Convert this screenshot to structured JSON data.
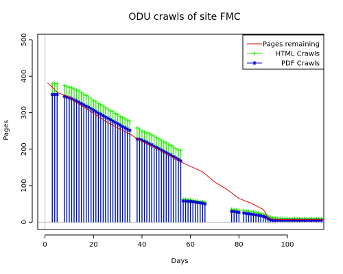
{
  "chart_data": {
    "type": "line",
    "title": "ODU crawls of site FMC",
    "xlabel": "Days",
    "ylabel": "Pages",
    "xlim": [
      -3,
      115
    ],
    "ylim": [
      -20,
      515
    ],
    "x_ticks": [
      0,
      20,
      40,
      60,
      80,
      100
    ],
    "y_ticks": [
      0,
      100,
      200,
      300,
      400,
      500
    ],
    "grid": false,
    "legend_position": "top-right",
    "legend": [
      {
        "name": "Pages remaining",
        "color": "#dd0000",
        "style": "line"
      },
      {
        "name": "HTML Crawls",
        "color": "#22ee00",
        "style": "line-plus"
      },
      {
        "name": "PDF Crawls",
        "color": "#0000cc",
        "style": "line-star"
      }
    ],
    "series": [
      {
        "name": "Pages remaining",
        "color": "#dd0000",
        "x": [
          1,
          3,
          5,
          10,
          15,
          20,
          25,
          30,
          35,
          38,
          40,
          45,
          50,
          55,
          56,
          60,
          65,
          70,
          75,
          80,
          85,
          90,
          91,
          92,
          95,
          100,
          105,
          110,
          115
        ],
        "values": [
          382,
          370,
          356,
          342,
          320,
          298,
          277,
          258,
          242,
          229,
          222,
          206,
          188,
          170,
          165,
          153,
          138,
          110,
          90,
          65,
          52,
          35,
          25,
          12,
          8,
          7,
          7,
          7,
          7
        ]
      },
      {
        "name": "HTML Crawls",
        "color": "#22ee00",
        "style": "spikes",
        "x": [
          3,
          4,
          5,
          8,
          9,
          10,
          11,
          12,
          13,
          14,
          15,
          16,
          17,
          18,
          19,
          20,
          21,
          22,
          23,
          24,
          25,
          26,
          27,
          28,
          29,
          30,
          31,
          32,
          33,
          34,
          35,
          38,
          39,
          40,
          41,
          42,
          43,
          44,
          45,
          46,
          47,
          48,
          49,
          50,
          51,
          52,
          53,
          54,
          55,
          56,
          57,
          58,
          59,
          60,
          61,
          62,
          63,
          64,
          65,
          66,
          77,
          78,
          79,
          80,
          82,
          83,
          84,
          85,
          86,
          87,
          88,
          89,
          90,
          91,
          92,
          93,
          94,
          95,
          96,
          97,
          98,
          99,
          100,
          101,
          102,
          103,
          104,
          105,
          106,
          107,
          108,
          109,
          110,
          111,
          112,
          113,
          114
        ],
        "values": [
          380,
          380,
          380,
          375,
          372,
          370,
          368,
          365,
          362,
          360,
          355,
          351,
          347,
          343,
          338,
          333,
          330,
          325,
          322,
          318,
          314,
          310,
          305,
          303,
          298,
          295,
          290,
          287,
          283,
          280,
          277,
          258,
          255,
          250,
          247,
          245,
          243,
          239,
          236,
          232,
          228,
          224,
          220,
          217,
          214,
          210,
          206,
          202,
          198,
          196,
          63,
          63,
          62,
          61,
          60,
          59,
          58,
          57,
          56,
          55,
          36,
          35,
          34,
          33,
          32,
          31,
          30,
          29,
          28,
          27,
          25,
          24,
          23,
          20,
          17,
          14,
          13,
          12,
          11,
          11,
          11,
          11,
          10,
          10,
          10,
          10,
          10,
          10,
          10,
          10,
          10,
          10,
          10,
          10,
          10,
          10,
          10
        ]
      },
      {
        "name": "PDF Crawls",
        "color": "#0000cc",
        "style": "spikes",
        "x": [
          3,
          4,
          5,
          8,
          9,
          10,
          11,
          12,
          13,
          14,
          15,
          16,
          17,
          18,
          19,
          20,
          21,
          22,
          23,
          24,
          25,
          26,
          27,
          28,
          29,
          30,
          31,
          32,
          33,
          34,
          35,
          38,
          39,
          40,
          41,
          42,
          43,
          44,
          45,
          46,
          47,
          48,
          49,
          50,
          51,
          52,
          53,
          54,
          55,
          56,
          57,
          58,
          59,
          60,
          61,
          62,
          63,
          64,
          65,
          66,
          77,
          78,
          79,
          80,
          82,
          83,
          84,
          85,
          86,
          87,
          88,
          89,
          90,
          91,
          92,
          93,
          94,
          95,
          96,
          97,
          98,
          99,
          100,
          101,
          102,
          103,
          104,
          105,
          106,
          107,
          108,
          109,
          110,
          111,
          112,
          113,
          114
        ],
        "values": [
          350,
          350,
          350,
          345,
          343,
          341,
          338,
          335,
          332,
          329,
          325,
          322,
          318,
          315,
          311,
          307,
          303,
          299,
          296,
          292,
          288,
          285,
          281,
          277,
          273,
          270,
          266,
          262,
          259,
          255,
          252,
          228,
          227,
          225,
          222,
          219,
          215,
          212,
          208,
          205,
          201,
          198,
          194,
          191,
          187,
          184,
          180,
          176,
          172,
          168,
          58,
          58,
          57,
          57,
          56,
          55,
          54,
          53,
          52,
          50,
          30,
          29,
          28,
          27,
          25,
          24,
          23,
          22,
          21,
          20,
          19,
          18,
          16,
          14,
          10,
          6,
          5,
          5,
          5,
          5,
          5,
          5,
          5,
          5,
          5,
          5,
          5,
          5,
          5,
          5,
          5,
          5,
          5,
          5,
          5,
          5,
          5
        ]
      }
    ]
  }
}
